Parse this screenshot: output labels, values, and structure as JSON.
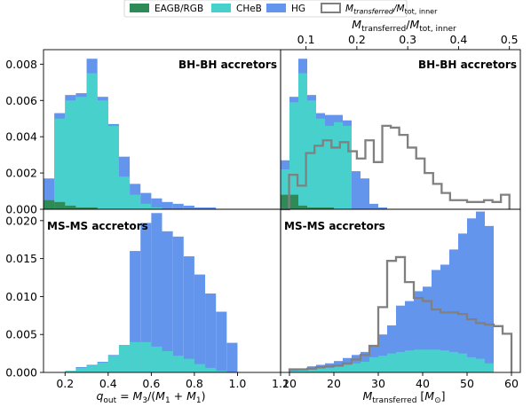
{
  "colors": {
    "eagb": "#2e8b57",
    "cheb": "#48d1cc",
    "hg": "#6495ed",
    "outline": "#808080"
  },
  "legend": [
    {
      "label": "EAGB/RGB",
      "kind": "patch",
      "color": "#2e8b57"
    },
    {
      "label": "CHeB",
      "kind": "patch",
      "color": "#48d1cc"
    },
    {
      "label": "HG",
      "kind": "patch",
      "color": "#6495ed"
    },
    {
      "label": "M_transferred/M_tot, inner",
      "kind": "step",
      "color": "#808080"
    }
  ],
  "chart_data": [
    {
      "type": "bar",
      "panel": "top-left",
      "title": "BH-BH accretors",
      "stacked": false,
      "bin_edges": [
        0.1,
        0.15,
        0.2,
        0.25,
        0.3,
        0.35,
        0.4,
        0.45,
        0.5,
        0.55,
        0.6,
        0.65,
        0.7,
        0.75,
        0.8,
        0.85,
        0.9,
        0.95,
        1.0,
        1.05,
        1.1,
        1.15,
        1.2
      ],
      "xlim": [
        0.1,
        1.2
      ],
      "ylim": [
        0,
        0.0088
      ],
      "yticks": [
        "0.000",
        "0.002",
        "0.004",
        "0.006",
        "0.008"
      ],
      "xticks": [],
      "series": [
        {
          "name": "HG",
          "color": "#6495ed",
          "values": [
            0.0017,
            0.0053,
            0.0063,
            0.0064,
            0.0083,
            0.0062,
            0.0047,
            0.0029,
            0.0014,
            0.0009,
            0.0006,
            0.0004,
            0.0003,
            0.0002,
            0.0001,
            0.0001,
            0,
            0,
            0,
            0,
            0,
            0
          ]
        },
        {
          "name": "CHeB",
          "color": "#48d1cc",
          "values": [
            0.0003,
            0.005,
            0.006,
            0.0062,
            0.0075,
            0.006,
            0.0046,
            0.0018,
            0.0008,
            0.0003,
            0.0001,
            0,
            0,
            0,
            0,
            0,
            0,
            0,
            0,
            0,
            0,
            0
          ]
        },
        {
          "name": "EAGB/RGB",
          "color": "#2e8b57",
          "values": [
            0.0005,
            0.0004,
            0.0002,
            0.0001,
            0.0001,
            0,
            0,
            0,
            0,
            0,
            0,
            0,
            0,
            0,
            0,
            0,
            0,
            0,
            0,
            0,
            0,
            0
          ]
        }
      ]
    },
    {
      "type": "bar",
      "panel": "top-right",
      "title": "BH-BH accretors",
      "stacked": false,
      "bin_edges": [
        8,
        10,
        12,
        14,
        16,
        18,
        20,
        22,
        24,
        26,
        28,
        30,
        32,
        34,
        36,
        38,
        40,
        42,
        44,
        46,
        48,
        50,
        52,
        54,
        56,
        58,
        60,
        62
      ],
      "xlim": [
        8,
        62
      ],
      "ylim": [
        0,
        0.0088
      ],
      "yticks": [],
      "xticks": [],
      "series": [
        {
          "name": "HG",
          "color": "#6495ed",
          "values": [
            0.0027,
            0.0062,
            0.0083,
            0.0063,
            0.0053,
            0.0052,
            0.0052,
            0.0049,
            0.0021,
            0.0017,
            0.0003,
            0.0001,
            0,
            0,
            0,
            0,
            0,
            0,
            0,
            0,
            0,
            0,
            0,
            0,
            0,
            0,
            0
          ]
        },
        {
          "name": "CHeB",
          "color": "#48d1cc",
          "values": [
            0.0022,
            0.0059,
            0.0075,
            0.006,
            0.005,
            0.0046,
            0.0048,
            0.0046,
            0,
            0,
            0,
            0,
            0,
            0,
            0,
            0,
            0,
            0,
            0,
            0,
            0,
            0,
            0,
            0,
            0,
            0,
            0
          ]
        },
        {
          "name": "EAGB/RGB",
          "color": "#2e8b57",
          "values": [
            0.0008,
            0.0008,
            0.0002,
            0.0001,
            0.0001,
            0.0001,
            0,
            0,
            0,
            0,
            0,
            0,
            0,
            0,
            0,
            0,
            0,
            0,
            0,
            0,
            0,
            0,
            0,
            0,
            0,
            0,
            0
          ]
        }
      ],
      "step_series": {
        "name": "M_transferred/M_tot, inner",
        "color": "#808080",
        "bin_edges": [
          0.05,
          0.0667,
          0.0833,
          0.1,
          0.1167,
          0.1333,
          0.15,
          0.1667,
          0.1833,
          0.2,
          0.2167,
          0.2333,
          0.25,
          0.2667,
          0.2833,
          0.3,
          0.3167,
          0.3333,
          0.35,
          0.3667,
          0.3833,
          0.4,
          0.4167,
          0.4333,
          0.45,
          0.4667,
          0.4833,
          0.5
        ],
        "values": [
          0.0,
          0.0019,
          0.0013,
          0.0031,
          0.0035,
          0.0038,
          0.0034,
          0.0037,
          0.0032,
          0.0028,
          0.0038,
          0.0026,
          0.0046,
          0.0045,
          0.0041,
          0.0034,
          0.0028,
          0.002,
          0.0014,
          0.0009,
          0.0005,
          0.0005,
          0.0004,
          0.0004,
          0.0005,
          0.0004,
          0.0008
        ],
        "top_xlim": [
          0.05,
          0.5215
        ],
        "top_xticks": [
          0.1,
          0.2,
          0.3,
          0.4,
          0.5
        ],
        "top_xtick_labels": [
          "0.1",
          "0.2",
          "0.3",
          "0.4",
          "0.5"
        ],
        "top_xlabel": "M_transferred/M_tot, inner"
      }
    },
    {
      "type": "bar",
      "panel": "bottom-left",
      "title": "MS-MS accretors",
      "stacked": false,
      "bin_edges": [
        0.1,
        0.15,
        0.2,
        0.25,
        0.3,
        0.35,
        0.4,
        0.45,
        0.5,
        0.55,
        0.6,
        0.65,
        0.7,
        0.75,
        0.8,
        0.85,
        0.9,
        0.95,
        1.0,
        1.05,
        1.1,
        1.15,
        1.2
      ],
      "xlim": [
        0.1,
        1.2
      ],
      "ylim": [
        0,
        0.0215
      ],
      "yticks": [
        "0.000",
        "0.005",
        "0.010",
        "0.015",
        "0.020"
      ],
      "xticks": [
        0.2,
        0.4,
        0.6,
        0.8,
        1.0,
        1.2
      ],
      "xtick_labels": [
        "0.2",
        "0.4",
        "0.6",
        "0.8",
        "1.0",
        "1.2"
      ],
      "xlabel": "q_out = M3/(M1 + M1)",
      "series": [
        {
          "name": "HG",
          "color": "#6495ed",
          "values": [
            0,
            0,
            0.0002,
            0.0007,
            0.001,
            0.0014,
            0.0023,
            0.0036,
            0.016,
            0.0197,
            0.021,
            0.0186,
            0.0179,
            0.0153,
            0.0129,
            0.0104,
            0.008,
            0.0039,
            0,
            0,
            0,
            0
          ]
        },
        {
          "name": "CHeB",
          "color": "#48d1cc",
          "values": [
            0,
            0,
            0.0002,
            0.0006,
            0.0009,
            0.0013,
            0.0022,
            0.0035,
            0.004,
            0.004,
            0.0034,
            0.0028,
            0.0022,
            0.0018,
            0.0011,
            0.0006,
            0.0002,
            0,
            0,
            0,
            0,
            0
          ]
        }
      ]
    },
    {
      "type": "bar",
      "panel": "bottom-right",
      "title": "MS-MS accretors",
      "stacked": false,
      "bin_edges": [
        8,
        10,
        12,
        14,
        16,
        18,
        20,
        22,
        24,
        26,
        28,
        30,
        32,
        34,
        36,
        38,
        40,
        42,
        44,
        46,
        48,
        50,
        52,
        54,
        56,
        58,
        60,
        62
      ],
      "xlim": [
        8,
        62
      ],
      "ylim": [
        0,
        0.0215
      ],
      "yticks": [],
      "xticks": [
        10,
        20,
        30,
        40,
        50,
        60
      ],
      "xtick_labels": [
        "10",
        "20",
        "30",
        "40",
        "50",
        "60"
      ],
      "xlabel": "M_transferred [M_sun]",
      "series": [
        {
          "name": "HG",
          "color": "#6495ed",
          "values": [
            0,
            0.0003,
            0.0005,
            0.0008,
            0.001,
            0.0012,
            0.0015,
            0.0019,
            0.0023,
            0.0027,
            0.0036,
            0.005,
            0.0062,
            0.0088,
            0.0094,
            0.0107,
            0.0113,
            0.0135,
            0.0142,
            0.0162,
            0.0183,
            0.0203,
            0.0212,
            0.0193,
            0,
            0,
            0
          ]
        },
        {
          "name": "CHeB",
          "color": "#48d1cc",
          "values": [
            0,
            0.0002,
            0.0003,
            0.0004,
            0.0005,
            0.0006,
            0.0008,
            0.001,
            0.0012,
            0.0014,
            0.002,
            0.0022,
            0.0025,
            0.0027,
            0.0029,
            0.003,
            0.003,
            0.003,
            0.0029,
            0.0027,
            0.0025,
            0.002,
            0.0018,
            0.0012,
            0,
            0,
            0
          ]
        }
      ],
      "step_series": {
        "name": "M_transferred/M_tot, inner",
        "color": "#808080",
        "bin_edges": [
          10,
          12,
          14,
          16,
          18,
          20,
          22,
          24,
          26,
          28,
          30,
          32,
          34,
          36,
          38,
          40,
          42,
          44,
          46,
          48,
          50,
          52,
          54,
          56,
          58,
          60
        ],
        "values": [
          0.0004,
          0.0004,
          0.0005,
          0.0007,
          0.0008,
          0.0009,
          0.0012,
          0.0017,
          0.0023,
          0.0035,
          0.0086,
          0.0147,
          0.0152,
          0.0119,
          0.0098,
          0.0094,
          0.0083,
          0.0079,
          0.0079,
          0.0077,
          0.007,
          0.0065,
          0.0063,
          0.0061,
          0.0051
        ]
      }
    }
  ]
}
